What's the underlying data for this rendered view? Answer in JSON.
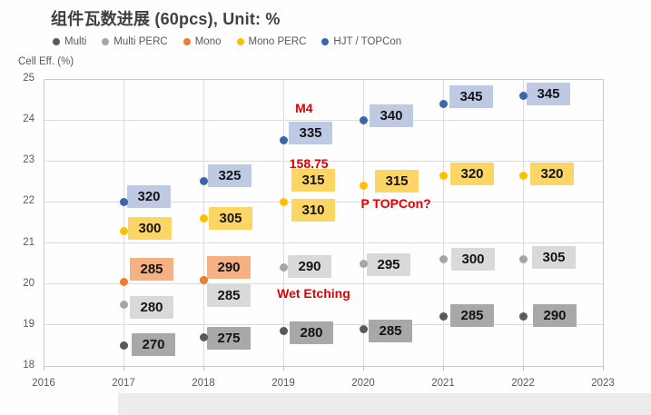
{
  "chart_data": {
    "type": "scatter",
    "title": "组件瓦数进展 (60pcs), Unit: %",
    "ylabel": "Cell Eff. (%)",
    "xlabel": "",
    "xlim": [
      2016,
      2023
    ],
    "ylim": [
      18,
      25
    ],
    "x_ticks": [
      "2016",
      "2017",
      "2018",
      "2019",
      "2020",
      "2021",
      "2022",
      "2023"
    ],
    "y_ticks": [
      "18",
      "19",
      "20",
      "21",
      "22",
      "23",
      "24",
      "25"
    ],
    "grid": true,
    "legend_position": "top",
    "grid_color": "#dcdcdc",
    "axis_text_color": "#595959",
    "annotation_color": "#e00000",
    "series": [
      {
        "name": "Multi",
        "dot_color": "#595959",
        "box_color": "#a8a8a8",
        "points": [
          {
            "x": 2017,
            "y": 18.5,
            "label": "270",
            "dx": 33,
            "dy": -1
          },
          {
            "x": 2018,
            "y": 18.7,
            "label": "275",
            "dx": 28,
            "dy": 1
          },
          {
            "x": 2019,
            "y": 18.85,
            "label": "280",
            "dx": 31,
            "dy": 2
          },
          {
            "x": 2020,
            "y": 18.9,
            "label": "285",
            "dx": 30,
            "dy": 2
          },
          {
            "x": 2021,
            "y": 19.2,
            "label": "285",
            "dx": 32,
            "dy": -1
          },
          {
            "x": 2022,
            "y": 19.2,
            "label": "290",
            "dx": 35,
            "dy": -1
          }
        ]
      },
      {
        "name": "Multi PERC",
        "dot_color": "#a6a6a6",
        "box_color": "#d9d9d9",
        "points": [
          {
            "x": 2017,
            "y": 19.5,
            "label": "280",
            "dx": 31,
            "dy": 3
          },
          {
            "x": 2018,
            "y": 20.1,
            "label": "285",
            "dx": 28,
            "dy": 17
          },
          {
            "x": 2019,
            "y": 20.4,
            "label": "290",
            "dx": 29,
            "dy": -1
          },
          {
            "x": 2020,
            "y": 20.5,
            "label": "295",
            "dx": 28,
            "dy": 1
          },
          {
            "x": 2021,
            "y": 20.6,
            "label": "300",
            "dx": 33,
            "dy": 0
          },
          {
            "x": 2022,
            "y": 20.6,
            "label": "305",
            "dx": 34,
            "dy": -2
          }
        ]
      },
      {
        "name": "Mono",
        "dot_color": "#ed7d31",
        "box_color": "#f4b183",
        "points": [
          {
            "x": 2017,
            "y": 20.05,
            "label": "285",
            "dx": 31,
            "dy": -14
          },
          {
            "x": 2018,
            "y": 20.1,
            "label": "290",
            "dx": 28,
            "dy": -14
          }
        ]
      },
      {
        "name": "Mono PERC",
        "dot_color": "#ffc000",
        "box_color": "#fbd665",
        "points": [
          {
            "x": 2017,
            "y": 21.3,
            "label": "300",
            "dx": 29,
            "dy": -3
          },
          {
            "x": 2018,
            "y": 21.6,
            "label": "305",
            "dx": 30,
            "dy": 0
          },
          {
            "x": 2019,
            "y": 22.0,
            "label": "310",
            "dx": 33,
            "dy": 9,
            "extra_label": {
              "text": "315",
              "dx": 33,
              "dy": -24
            }
          },
          {
            "x": 2020,
            "y": 22.4,
            "label": "315",
            "dx": 37,
            "dy": -5
          },
          {
            "x": 2021,
            "y": 22.65,
            "label": "320",
            "dx": 32,
            "dy": -2
          },
          {
            "x": 2022,
            "y": 22.65,
            "label": "320",
            "dx": 32,
            "dy": -2
          }
        ]
      },
      {
        "name": "HJT / TOPCon",
        "dot_color": "#3a66ad",
        "box_color": "#becae3",
        "points": [
          {
            "x": 2017,
            "y": 22.0,
            "label": "320",
            "dx": 28,
            "dy": -6
          },
          {
            "x": 2018,
            "y": 22.5,
            "label": "325",
            "dx": 29,
            "dy": -6
          },
          {
            "x": 2019,
            "y": 23.5,
            "label": "335",
            "dx": 30,
            "dy": -8
          },
          {
            "x": 2020,
            "y": 24.0,
            "label": "340",
            "dx": 31,
            "dy": -5
          },
          {
            "x": 2021,
            "y": 24.4,
            "label": "345",
            "dx": 31,
            "dy": -8
          },
          {
            "x": 2022,
            "y": 24.6,
            "label": "345",
            "dx": 28,
            "dy": -2
          }
        ]
      }
    ],
    "annotations": [
      {
        "text": "M4",
        "x": 2019.26,
        "y": 24.3
      },
      {
        "text": "158.75",
        "x": 2019.32,
        "y": 22.93
      },
      {
        "text": "P TOPCon?",
        "x": 2020.41,
        "y": 21.97
      },
      {
        "text": "Wet Etching",
        "x": 2019.38,
        "y": 19.78
      }
    ]
  }
}
